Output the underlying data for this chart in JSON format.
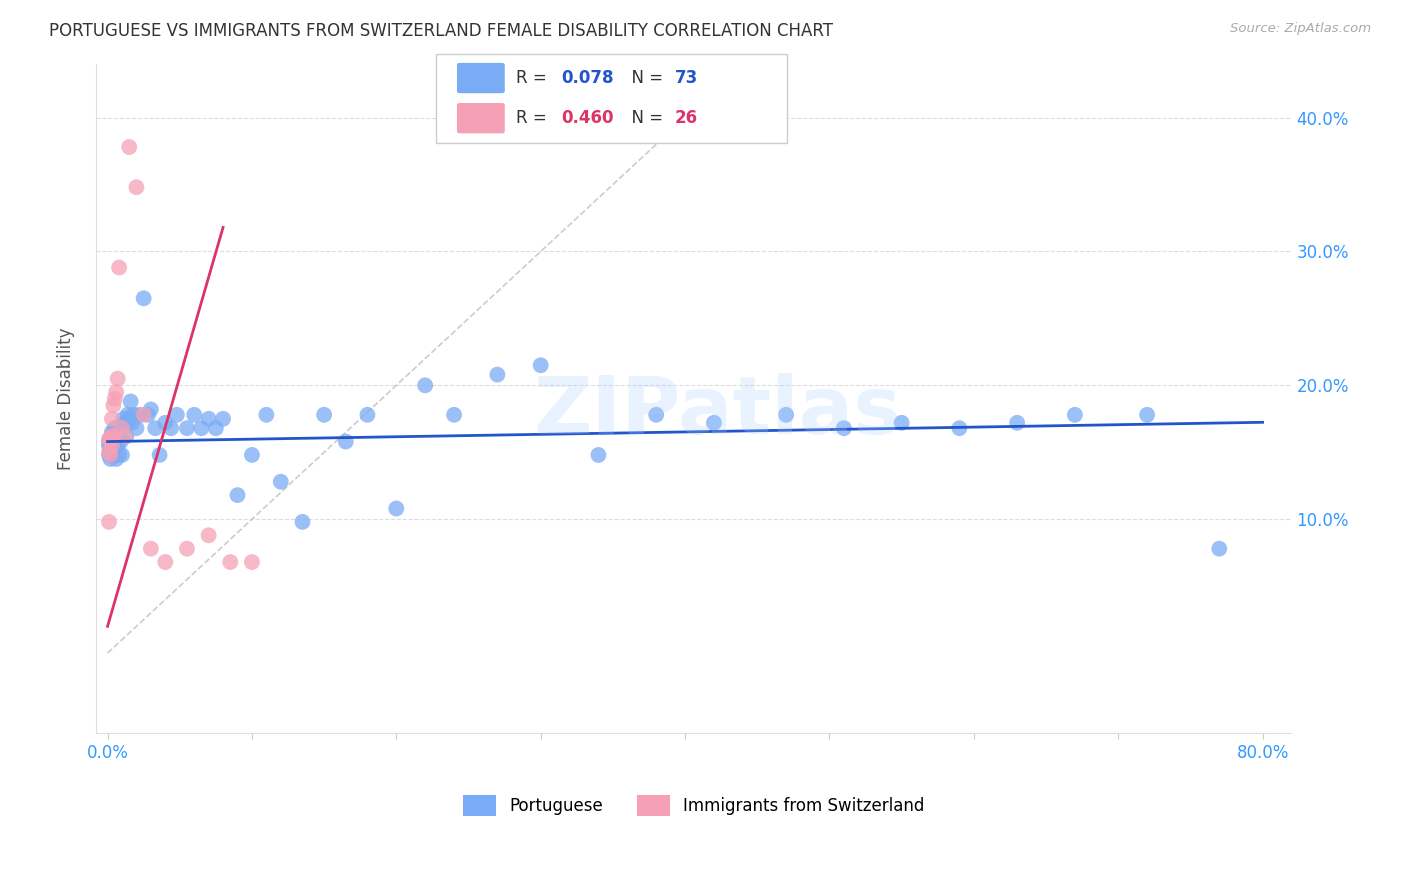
{
  "title": "PORTUGUESE VS IMMIGRANTS FROM SWITZERLAND FEMALE DISABILITY CORRELATION CHART",
  "source": "Source: ZipAtlas.com",
  "ylabel": "Female Disability",
  "xlim": [
    -0.008,
    0.82
  ],
  "ylim": [
    -0.06,
    0.44
  ],
  "x_tick_positions": [
    0.0,
    0.1,
    0.2,
    0.3,
    0.4,
    0.5,
    0.6,
    0.7,
    0.8
  ],
  "x_tick_labels": [
    "0.0%",
    "",
    "",
    "",
    "",
    "",
    "",
    "",
    "80.0%"
  ],
  "y_tick_positions": [
    0.1,
    0.2,
    0.3,
    0.4
  ],
  "y_tick_labels": [
    "10.0%",
    "20.0%",
    "30.0%",
    "40.0%"
  ],
  "blue_R": 0.078,
  "blue_N": 73,
  "pink_R": 0.46,
  "pink_N": 26,
  "blue_color": "#7aabf5",
  "pink_color": "#f5a0b5",
  "blue_line_color": "#2255cc",
  "pink_line_color": "#dd3366",
  "ref_line_color": "#cccccc",
  "watermark": "ZIPatlas",
  "blue_x": [
    0.001,
    0.001,
    0.001,
    0.002,
    0.002,
    0.002,
    0.003,
    0.003,
    0.003,
    0.003,
    0.004,
    0.004,
    0.004,
    0.005,
    0.005,
    0.005,
    0.006,
    0.006,
    0.007,
    0.007,
    0.008,
    0.008,
    0.009,
    0.01,
    0.01,
    0.011,
    0.012,
    0.013,
    0.014,
    0.015,
    0.016,
    0.017,
    0.018,
    0.02,
    0.022,
    0.025,
    0.028,
    0.03,
    0.033,
    0.036,
    0.04,
    0.044,
    0.048,
    0.055,
    0.06,
    0.065,
    0.07,
    0.075,
    0.08,
    0.09,
    0.1,
    0.11,
    0.12,
    0.135,
    0.15,
    0.165,
    0.18,
    0.2,
    0.22,
    0.24,
    0.27,
    0.3,
    0.34,
    0.38,
    0.42,
    0.47,
    0.51,
    0.55,
    0.59,
    0.63,
    0.67,
    0.72,
    0.77
  ],
  "blue_y": [
    0.158,
    0.155,
    0.148,
    0.16,
    0.152,
    0.145,
    0.162,
    0.155,
    0.15,
    0.165,
    0.155,
    0.16,
    0.148,
    0.162,
    0.155,
    0.168,
    0.158,
    0.145,
    0.16,
    0.155,
    0.162,
    0.148,
    0.158,
    0.168,
    0.148,
    0.175,
    0.172,
    0.162,
    0.178,
    0.175,
    0.188,
    0.172,
    0.178,
    0.168,
    0.178,
    0.265,
    0.178,
    0.182,
    0.168,
    0.148,
    0.172,
    0.168,
    0.178,
    0.168,
    0.178,
    0.168,
    0.175,
    0.168,
    0.175,
    0.118,
    0.148,
    0.178,
    0.128,
    0.098,
    0.178,
    0.158,
    0.178,
    0.108,
    0.2,
    0.178,
    0.208,
    0.215,
    0.148,
    0.178,
    0.172,
    0.178,
    0.168,
    0.172,
    0.168,
    0.172,
    0.178,
    0.178,
    0.078
  ],
  "pink_x": [
    0.001,
    0.001,
    0.001,
    0.002,
    0.002,
    0.002,
    0.003,
    0.003,
    0.003,
    0.004,
    0.004,
    0.005,
    0.006,
    0.007,
    0.008,
    0.01,
    0.012,
    0.015,
    0.02,
    0.025,
    0.03,
    0.04,
    0.055,
    0.07,
    0.085,
    0.1
  ],
  "pink_y": [
    0.16,
    0.15,
    0.098,
    0.16,
    0.148,
    0.158,
    0.162,
    0.175,
    0.155,
    0.185,
    0.162,
    0.19,
    0.195,
    0.205,
    0.288,
    0.168,
    0.162,
    0.378,
    0.348,
    0.178,
    0.078,
    0.068,
    0.078,
    0.088,
    0.068,
    0.068
  ],
  "blue_line_x": [
    0.0,
    0.8
  ],
  "blue_line_y_intercept": 0.158,
  "blue_line_slope": 0.018,
  "pink_line_x0": 0.0,
  "pink_line_y0": 0.02,
  "pink_line_x1": 0.08,
  "pink_line_y1": 0.318,
  "ref_line_x": [
    0.0,
    0.44
  ],
  "ref_line_y": [
    0.0,
    0.44
  ]
}
